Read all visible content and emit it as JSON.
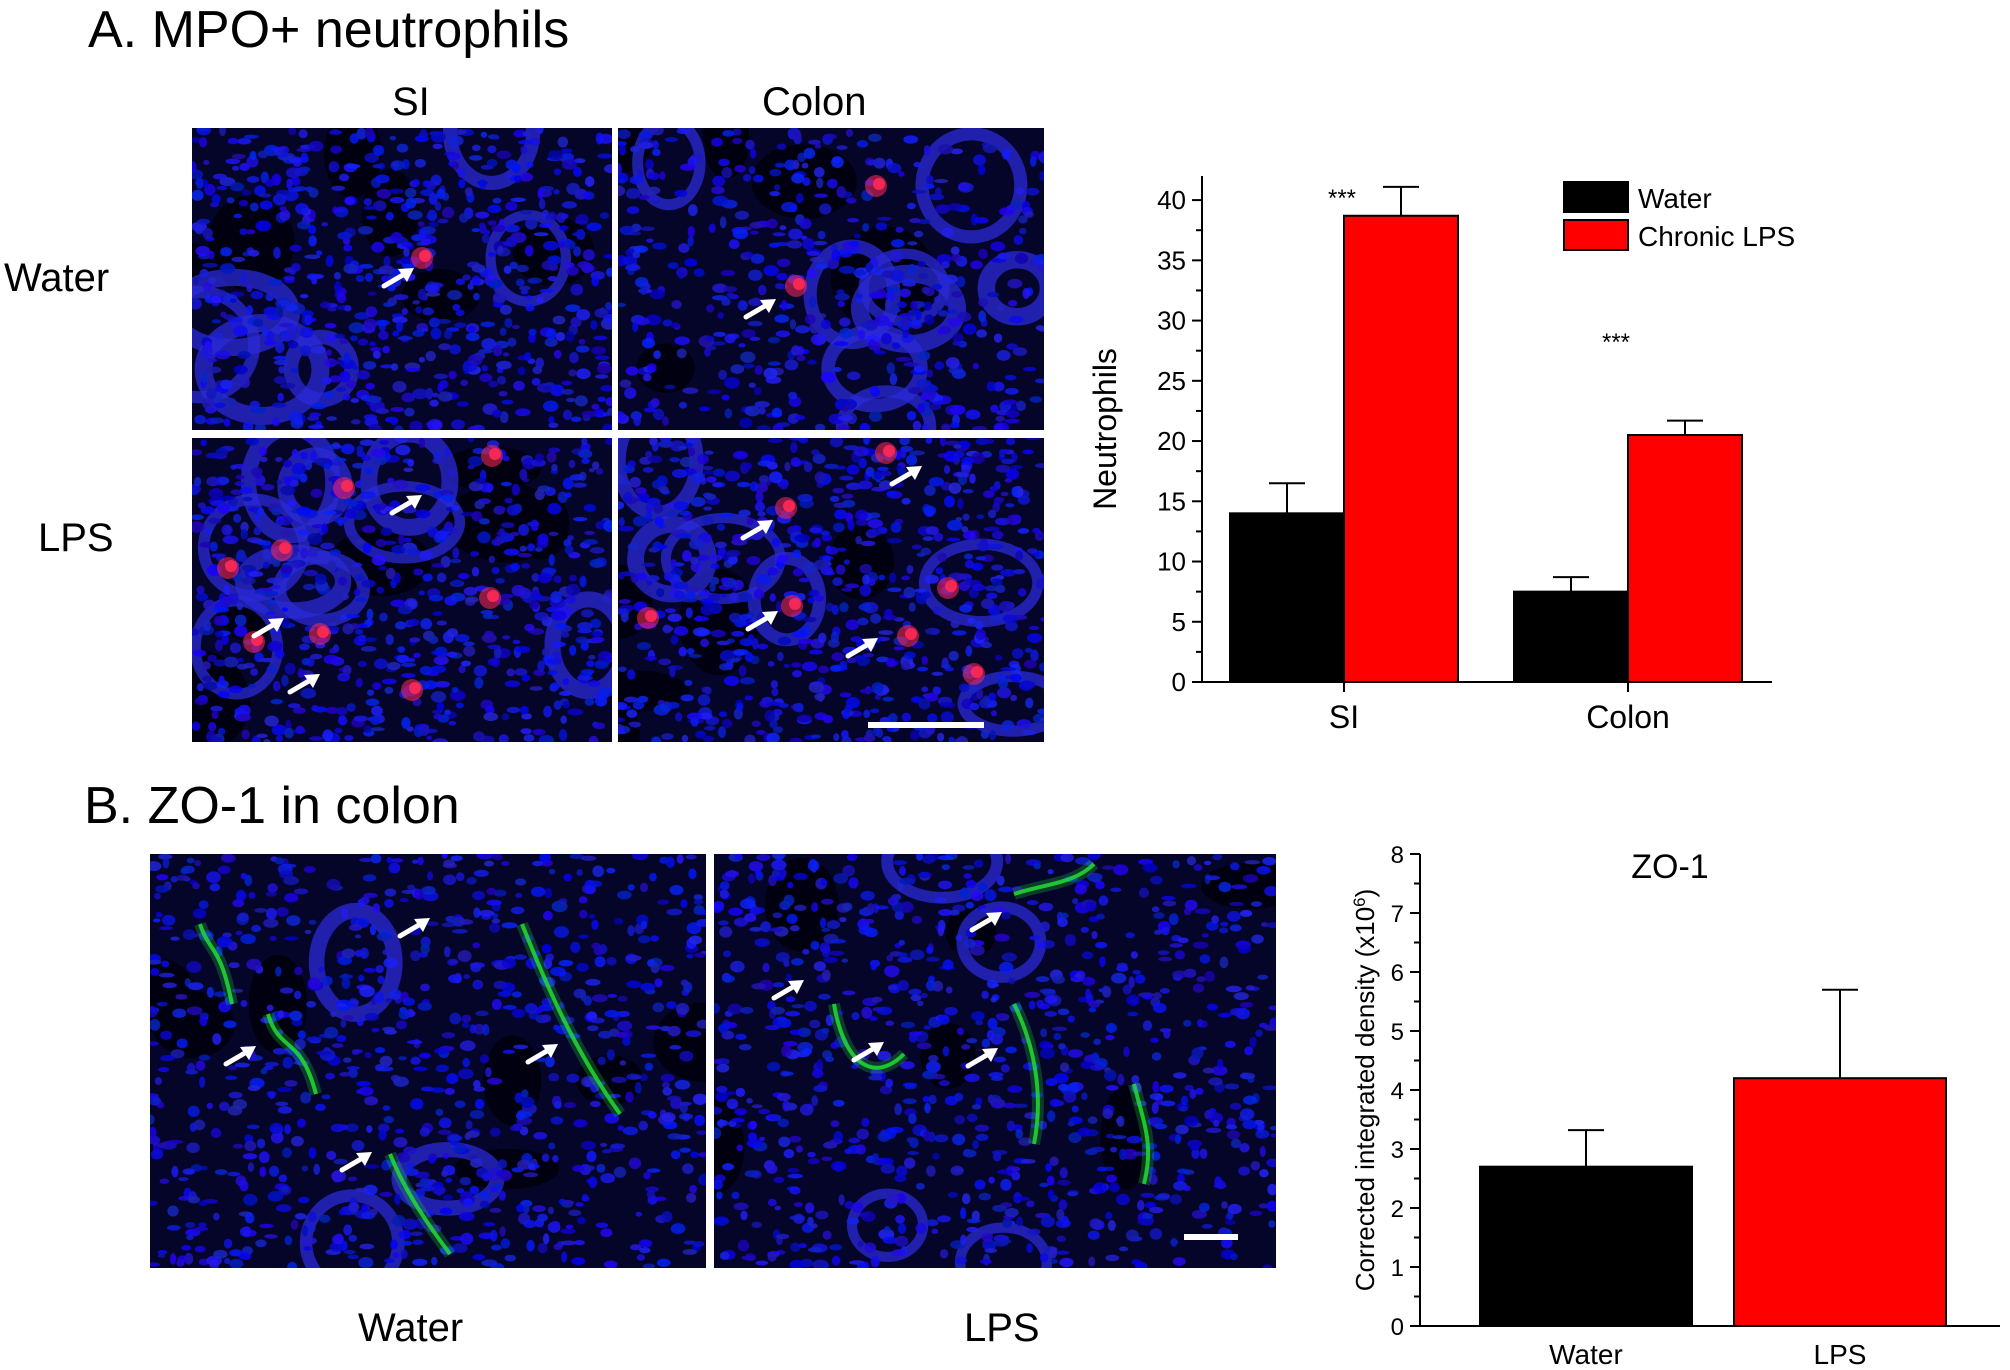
{
  "panel_a": {
    "title": "A. MPO+ neutrophils",
    "col_labels": [
      "SI",
      "Colon"
    ],
    "row_labels": [
      "Water",
      "LPS"
    ]
  },
  "panel_b": {
    "title": "B. ZO-1 in colon",
    "image_labels": [
      "Water",
      "LPS"
    ]
  },
  "colors": {
    "water": "#000000",
    "lps": "#ff0000",
    "nuclei": "#1e1ee6",
    "mpo": "#ff2a55",
    "zo1": "#22dd33"
  },
  "chart_data": [
    {
      "type": "bar",
      "categories": [
        "SI",
        "Colon"
      ],
      "series": [
        {
          "name": "Water",
          "values": [
            14.0,
            7.5
          ],
          "errors": [
            2.5,
            1.2
          ]
        },
        {
          "name": "Chronic LPS",
          "values": [
            38.7,
            20.5
          ],
          "errors": [
            2.4,
            1.2
          ]
        }
      ],
      "ylabel": "Neutrophils",
      "xlabel": "",
      "ylim": [
        0,
        42
      ],
      "yticks": [
        "0",
        "5",
        "10",
        "15",
        "20",
        "25",
        "30",
        "35",
        "40"
      ],
      "annotations": [
        "***",
        "***"
      ],
      "legend": "top-right",
      "grid": false
    },
    {
      "type": "bar",
      "title": "ZO-1",
      "categories": [
        "Water",
        "LPS"
      ],
      "values": [
        2.7,
        4.2
      ],
      "errors": [
        0.62,
        1.5
      ],
      "ylabel": "Corrected integrated density (x10",
      "ylabel_sup": "6",
      "ylabel_end": ")",
      "xlabel": "",
      "ylim": [
        0,
        8
      ],
      "yticks": [
        "0",
        "1",
        "2",
        "3",
        "4",
        "5",
        "6",
        "7",
        "8"
      ],
      "grid": false
    }
  ]
}
